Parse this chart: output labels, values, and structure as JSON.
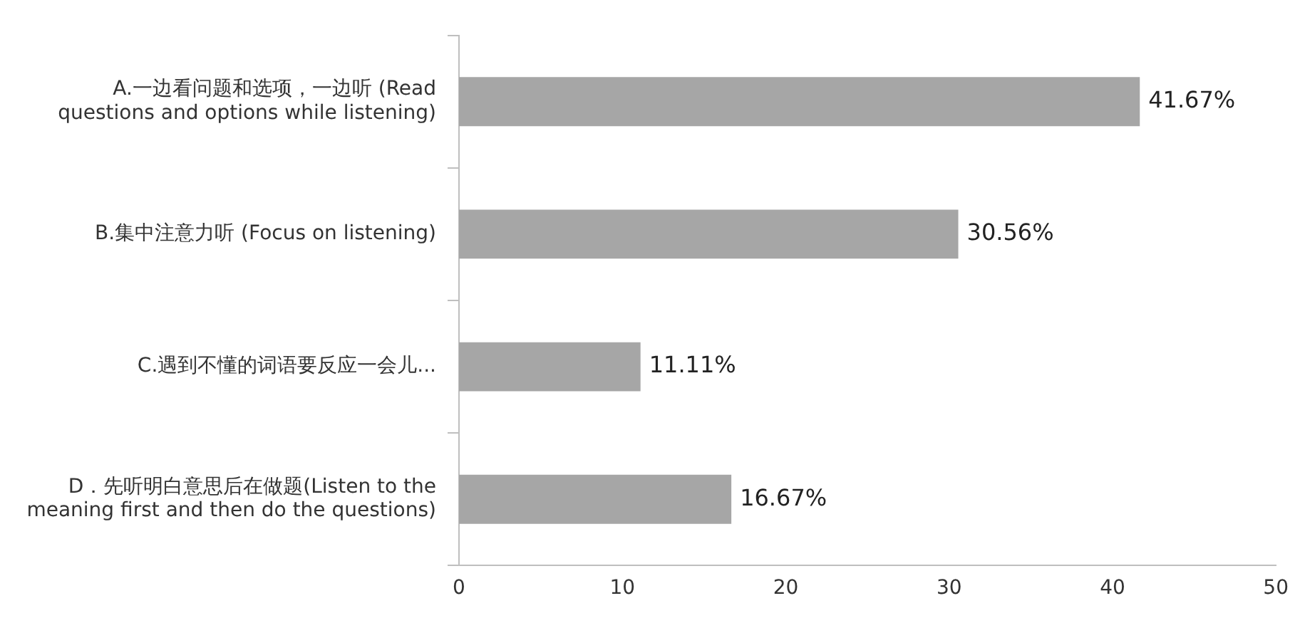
{
  "chart_data": {
    "type": "bar",
    "orientation": "horizontal",
    "categories": [
      "A.一边看问题和选项，一边听 (Read questions and options while listening)",
      "B.集中注意力听 (Focus on listening)",
      "C.遇到不懂的词语要反应一会儿...",
      "D．先听明白意思后在做题(Listen to the meaning first and then do the questions)"
    ],
    "values": [
      41.67,
      30.56,
      11.11,
      16.67
    ],
    "value_labels": [
      "41.67%",
      "30.56%",
      "11.11%",
      "16.67%"
    ],
    "color": "#a6a6a6",
    "xlim": [
      0,
      50
    ],
    "xticks": [
      0,
      10,
      20,
      30,
      40,
      50
    ],
    "grid": false,
    "legend": false
  }
}
